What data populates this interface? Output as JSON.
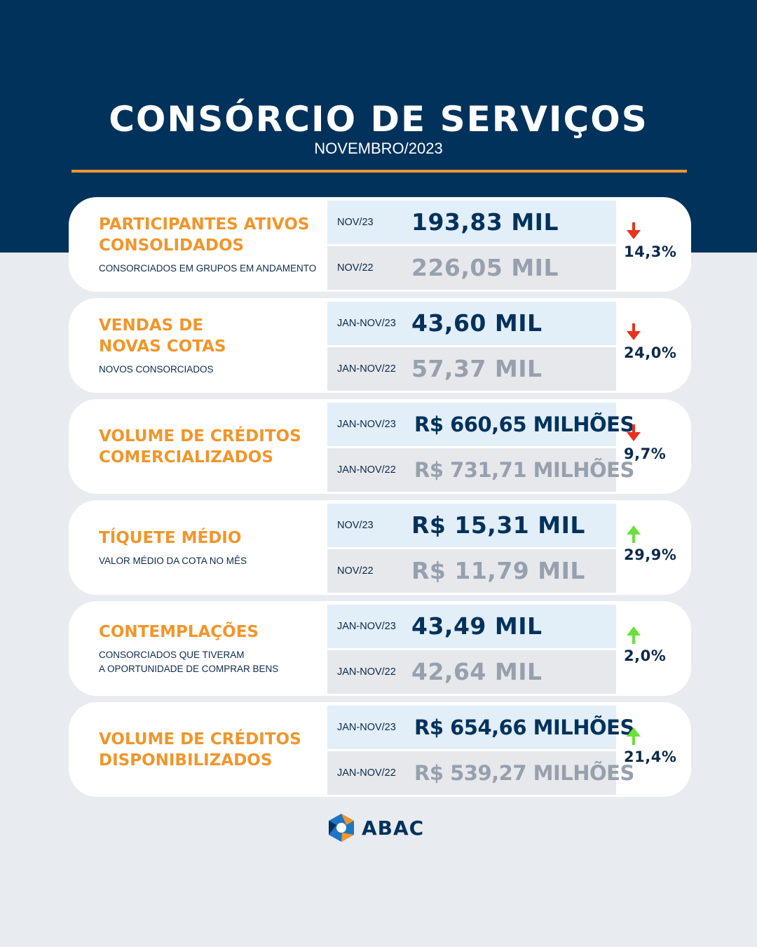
{
  "header": {
    "title": "CONSÓRCIO DE SERVIÇOS",
    "subtitle": "NOVEMBRO/2023"
  },
  "colors": {
    "navy": "#00325b",
    "orange": "#f0962b",
    "down": "#e8321e",
    "up": "#6be03a"
  },
  "cards": [
    {
      "label": "PARTICIPANTES ATIVOS\nCONSOLIDADOS",
      "desc": "CONSORCIADOS EM GRUPOS EM ANDAMENTO",
      "current": {
        "period": "NOV/23",
        "value": "193,83 MIL"
      },
      "previous": {
        "period": "NOV/22",
        "value": "226,05 MIL"
      },
      "change": "14,3%",
      "direction": "down",
      "arrow_icon": "arrow-down-icon"
    },
    {
      "label": "VENDAS DE\nNOVAS COTAS",
      "desc": "NOVOS CONSORCIADOS",
      "current": {
        "period": "JAN-NOV/23",
        "value": "43,60 MIL"
      },
      "previous": {
        "period": "JAN-NOV/22",
        "value": "57,37 MIL"
      },
      "change": "24,0%",
      "direction": "down",
      "arrow_icon": "arrow-down-icon"
    },
    {
      "label": "VOLUME DE CRÉDITOS\nCOMERCIALIZADOS",
      "desc": "",
      "current": {
        "period": "JAN-NOV/23",
        "value": "R$ 660,65 MILHÕES"
      },
      "previous": {
        "period": "JAN-NOV/22",
        "value": "R$ 731,71 MILHÕES"
      },
      "change": "9,7%",
      "direction": "down",
      "arrow_icon": "arrow-down-icon"
    },
    {
      "label": "TÍQUETE MÉDIO",
      "desc": "VALOR MÉDIO DA COTA NO MÊS",
      "current": {
        "period": "NOV/23",
        "value": "R$ 15,31 MIL"
      },
      "previous": {
        "period": "NOV/22",
        "value": "R$ 11,79 MIL"
      },
      "change": "29,9%",
      "direction": "up",
      "arrow_icon": "arrow-up-icon"
    },
    {
      "label": "CONTEMPLAÇÕES",
      "desc": "CONSORCIADOS QUE TIVERAM\nA OPORTUNIDADE DE COMPRAR BENS",
      "current": {
        "period": "JAN-NOV/23",
        "value": "43,49 MIL"
      },
      "previous": {
        "period": "JAN-NOV/22",
        "value": "42,64 MIL"
      },
      "change": "2,0%",
      "direction": "up",
      "arrow_icon": "arrow-up-icon"
    },
    {
      "label": "VOLUME DE CRÉDITOS\nDISPONIBILIZADOS",
      "desc": "",
      "current": {
        "period": "JAN-NOV/23",
        "value": "R$ 654,66 MILHÕES"
      },
      "previous": {
        "period": "JAN-NOV/22",
        "value": "R$ 539,27 MILHÕES"
      },
      "change": "21,4%",
      "direction": "up",
      "arrow_icon": "arrow-up-icon"
    }
  ],
  "footer": {
    "logo_text": "ABAC",
    "logo_icon": "abac-logo-icon"
  }
}
